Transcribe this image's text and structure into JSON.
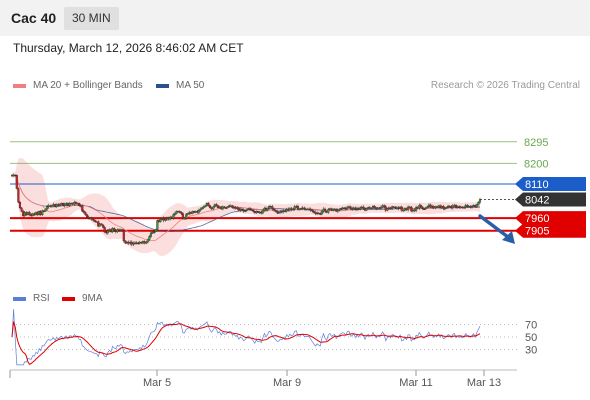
{
  "header": {
    "symbol": "Cac 40",
    "timeframe": "30 MIN"
  },
  "timestamp": "Thursday, March 12, 2026 8:46:02 AM CET",
  "legend": {
    "ma20": {
      "label": "MA 20 + Bollinger Bands",
      "color": "#f08080"
    },
    "ma50": {
      "label": "MA 50",
      "color": "#2b4f8f"
    }
  },
  "credit": "Research © 2026 Trading Central",
  "rsi_legend": {
    "rsi": {
      "label": "RSI",
      "color": "#5b7fd9"
    },
    "ma": {
      "label": "9MA",
      "color": "#e00000"
    }
  },
  "colors": {
    "resistance": "#6aa84f",
    "pivot": "#1c5ec9",
    "support": "#e00000",
    "last": "#333333",
    "arrow": "#2b5ea8"
  },
  "chart_data": [
    {
      "type": "candlestick",
      "x_labels": [
        "Mar 5",
        "Mar 9",
        "Mar 11",
        "Mar 13"
      ],
      "close": [
        8148,
        8149,
        8148,
        8090,
        8030,
        8005,
        7990,
        7970,
        7985,
        7975,
        7985,
        7975,
        7970,
        7980,
        7975,
        7985,
        7975,
        7990,
        7975,
        7992,
        7990,
        8000,
        8010,
        8015,
        8010,
        8015,
        8020,
        8010,
        8020,
        8015,
        8020,
        8025,
        8015,
        8020,
        8025,
        8015,
        8025,
        8025,
        8020,
        8030,
        8025,
        8025,
        8015,
        8015,
        7990,
        7985,
        7975,
        7965,
        7960,
        7960,
        7955,
        7950,
        7945,
        7945,
        7925,
        7935,
        7930,
        7920,
        7900,
        7895,
        7905,
        7910,
        7900,
        7915,
        7905,
        7900,
        7910,
        7905,
        7910,
        7905,
        7860,
        7850,
        7855,
        7850,
        7855,
        7845,
        7850,
        7852,
        7851,
        7850,
        7855,
        7850,
        7858,
        7850,
        7855,
        7865,
        7880,
        7895,
        7898,
        7900,
        7910,
        7950,
        7945,
        7955,
        7960,
        7950,
        7955,
        7960,
        7955,
        7965,
        7960,
        7975,
        7980,
        7990,
        7990,
        7985,
        7980,
        7960,
        7960,
        7975,
        7980,
        7985,
        7980,
        7990,
        7985,
        7990,
        7985,
        7995,
        8000,
        8005,
        8010,
        8015,
        8025,
        8015,
        8005,
        8000,
        8010,
        8020,
        8015,
        8005,
        8010,
        8000,
        8010,
        8005,
        8005,
        8010,
        8015,
        8015,
        8005,
        8008,
        8003,
        8005,
        7995,
        8000,
        7998,
        7990,
        7993,
        7998,
        8002,
        7999,
        7995,
        7990,
        7983,
        7990,
        7985,
        7987,
        7982,
        7992,
        8004,
        7995,
        8002,
        8012,
        8010,
        8000,
        7995,
        7990,
        7985,
        7985,
        7990,
        7988,
        7993,
        7990,
        8000,
        7995,
        8002,
        7998,
        8000,
        8010,
        8012,
        8000,
        8000,
        8003,
        8005,
        8000,
        8000,
        8000,
        8000,
        7995,
        7990,
        7985,
        7980,
        7983,
        7980,
        7978,
        7990,
        8000,
        7990,
        7985,
        7998,
        8002,
        7995,
        7998,
        8000,
        7990,
        7995,
        7999,
        8003,
        8005,
        8004,
        8000,
        8009,
        8010,
        8000,
        8002,
        8005,
        7998,
        8004,
        7999,
        8006,
        8009,
        8003,
        7995,
        8003,
        8007,
        8003,
        8004,
        8012,
        8005,
        8000,
        8006,
        8003,
        8008,
        8015,
        8010,
        7994,
        8002,
        8006,
        8001,
        8010,
        8009,
        8004,
        8006,
        8002,
        8009,
        7994,
        7995,
        8002,
        7996,
        8009,
        8009,
        7991,
        7996,
        7994,
        8007,
        8004,
        8016,
        8009,
        8001,
        8000,
        8005,
        8010,
        8018,
        8008,
        8012,
        8004,
        8010,
        8007,
        8014,
        8006,
        8012,
        8002,
        8004,
        8007,
        8013,
        8011,
        8005,
        8014,
        8017,
        8006,
        8011,
        8007,
        8009,
        8006,
        8008,
        8016,
        8012,
        8012,
        8008,
        8012,
        8016,
        8009,
        8020,
        8030,
        8042
      ],
      "levels": [
        {
          "value": 8295,
          "label": "8295",
          "kind": "resistance"
        },
        {
          "value": 8200,
          "label": "8200",
          "kind": "resistance"
        },
        {
          "value": 8110,
          "label": "8110",
          "kind": "pivot"
        },
        {
          "value": 8042,
          "label": "8042",
          "kind": "last"
        },
        {
          "value": 7960,
          "label": "7960",
          "kind": "support"
        },
        {
          "value": 7905,
          "label": "7905",
          "kind": "support"
        }
      ],
      "ylim": [
        7680,
        8500
      ]
    },
    {
      "type": "line",
      "series": [
        {
          "name": "RSI"
        },
        {
          "name": "9MA"
        }
      ],
      "y_ticks": [
        70,
        50,
        30
      ],
      "ylim": [
        0,
        100
      ]
    }
  ]
}
